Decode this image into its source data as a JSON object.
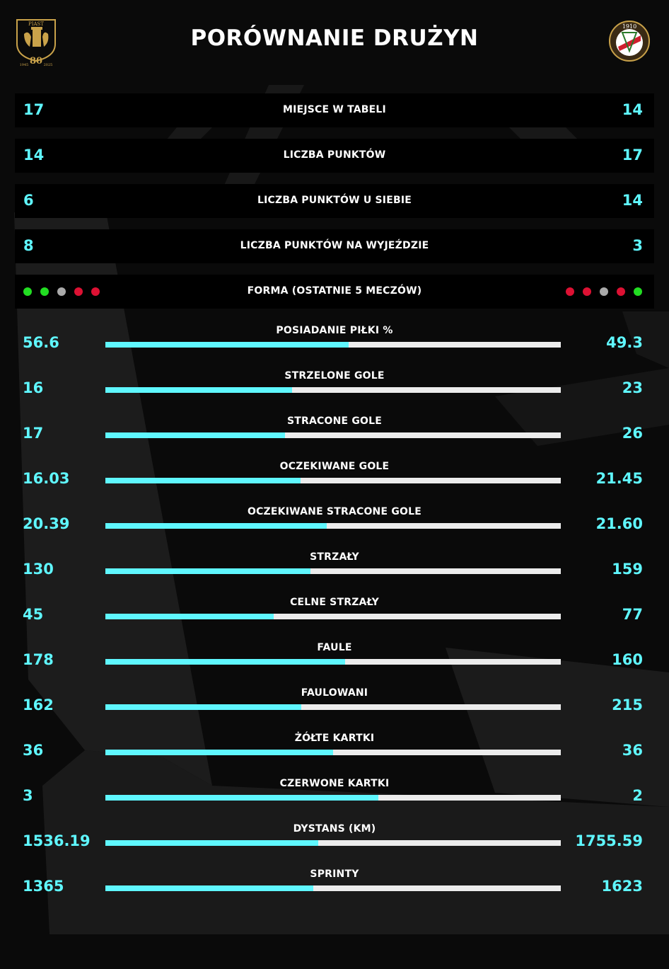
{
  "header": {
    "title": "PORÓWNANIE DRUŻYN",
    "home_logo": {
      "top_text": "PIAST",
      "number": "80",
      "years_left": "1945",
      "years_right": "2025"
    },
    "away_logo": {
      "year": "1910"
    }
  },
  "colors": {
    "accent": "#5ff7ff",
    "bar_track": "#ececec",
    "row_bg": "#000000",
    "win": "#22dd22",
    "draw": "#aaaaaa",
    "loss": "#dd1133"
  },
  "text_rows": [
    {
      "label": "MIEJSCE W TABELI",
      "left": "17",
      "right": "14"
    },
    {
      "label": "LICZBA PUNKTÓW",
      "left": "14",
      "right": "17"
    },
    {
      "label": "LICZBA PUNKTÓW U SIEBIE",
      "left": "6",
      "right": "14"
    },
    {
      "label": "LICZBA PUNKTÓW NA WYJEŹDZIE",
      "left": "8",
      "right": "3"
    }
  ],
  "form": {
    "label": "FORMA (OSTATNIE 5 MECZÓW)",
    "left": [
      "win",
      "win",
      "draw",
      "loss",
      "loss"
    ],
    "right": [
      "loss",
      "loss",
      "draw",
      "loss",
      "win"
    ]
  },
  "stats": [
    {
      "label": "POSIADANIE PIŁKI %",
      "left": "56.6",
      "right": "49.3",
      "share": 0.534
    },
    {
      "label": "STRZELONE GOLE",
      "left": "16",
      "right": "23",
      "share": 0.41
    },
    {
      "label": "STRACONE GOLE",
      "left": "17",
      "right": "26",
      "share": 0.395
    },
    {
      "label": "OCZEKIWANE GOLE",
      "left": "16.03",
      "right": "21.45",
      "share": 0.428
    },
    {
      "label": "OCZEKIWANE STRACONE GOLE",
      "left": "20.39",
      "right": "21.60",
      "share": 0.486
    },
    {
      "label": "STRZAŁY",
      "left": "130",
      "right": "159",
      "share": 0.45
    },
    {
      "label": "CELNE STRZAŁY",
      "left": "45",
      "right": "77",
      "share": 0.369
    },
    {
      "label": "FAULE",
      "left": "178",
      "right": "160",
      "share": 0.527
    },
    {
      "label": "FAULOWANI",
      "left": "162",
      "right": "215",
      "share": 0.43
    },
    {
      "label": "ŻÓŁTE KARTKI",
      "left": "36",
      "right": "36",
      "share": 0.5
    },
    {
      "label": "CZERWONE KARTKI",
      "left": "3",
      "right": "2",
      "share": 0.6
    },
    {
      "label": "DYSTANS (KM)",
      "left": "1536.19",
      "right": "1755.59",
      "share": 0.467
    },
    {
      "label": "SPRINTY",
      "left": "1365",
      "right": "1623",
      "share": 0.457
    }
  ]
}
